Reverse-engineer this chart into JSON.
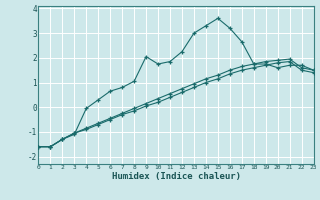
{
  "xlabel": "Humidex (Indice chaleur)",
  "background_color": "#cde8ea",
  "grid_color": "#ffffff",
  "line_color": "#1a6b6b",
  "xlim": [
    0,
    23
  ],
  "ylim": [
    -2.3,
    4.1
  ],
  "yticks": [
    -2,
    -1,
    0,
    1,
    2,
    3,
    4
  ],
  "xticks": [
    0,
    1,
    2,
    3,
    4,
    5,
    6,
    7,
    8,
    9,
    10,
    11,
    12,
    13,
    14,
    15,
    16,
    17,
    18,
    19,
    20,
    21,
    22,
    23
  ],
  "line1_x": [
    0,
    1,
    2,
    3,
    4,
    5,
    6,
    7,
    8,
    9,
    10,
    11,
    12,
    13,
    14,
    15,
    16,
    17,
    18,
    19,
    20,
    21,
    22,
    23
  ],
  "line1_y": [
    -1.6,
    -1.6,
    -1.3,
    -1.1,
    -0.05,
    0.3,
    0.65,
    0.8,
    1.05,
    2.05,
    1.75,
    1.85,
    2.25,
    3.0,
    3.3,
    3.6,
    3.2,
    2.65,
    1.75,
    1.75,
    1.6,
    1.7,
    1.7,
    1.5
  ],
  "line2_x": [
    0,
    1,
    2,
    3,
    4,
    5,
    6,
    7,
    8,
    9,
    10,
    11,
    12,
    13,
    14,
    15,
    16,
    17,
    18,
    19,
    20,
    21,
    22,
    23
  ],
  "line2_y": [
    -1.6,
    -1.6,
    -1.3,
    -1.05,
    -0.85,
    -0.65,
    -0.45,
    -0.25,
    -0.05,
    0.15,
    0.35,
    0.55,
    0.75,
    0.95,
    1.15,
    1.3,
    1.5,
    1.65,
    1.75,
    1.85,
    1.9,
    1.95,
    1.6,
    1.5
  ],
  "line3_x": [
    0,
    1,
    2,
    3,
    4,
    5,
    6,
    7,
    8,
    9,
    10,
    11,
    12,
    13,
    14,
    15,
    16,
    17,
    18,
    19,
    20,
    21,
    22,
    23
  ],
  "line3_y": [
    -1.6,
    -1.6,
    -1.3,
    -1.05,
    -0.9,
    -0.7,
    -0.5,
    -0.3,
    -0.15,
    0.05,
    0.2,
    0.4,
    0.6,
    0.8,
    1.0,
    1.15,
    1.35,
    1.5,
    1.6,
    1.7,
    1.8,
    1.85,
    1.5,
    1.4
  ]
}
